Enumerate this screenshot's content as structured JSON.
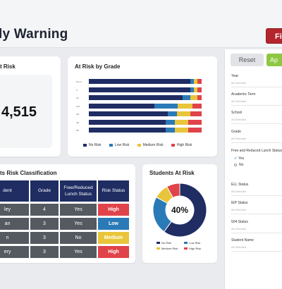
{
  "header": {
    "title": "ly Warning",
    "filter_label": "Fil"
  },
  "kpi": {
    "title": "t Risk",
    "value": "4,515"
  },
  "bar_card": {
    "title": "At Risk by Grade"
  },
  "table_card": {
    "title": "ts Risk Classification"
  },
  "donut_card": {
    "title": "Students At Risk",
    "center": "40%"
  },
  "colors": {
    "no_risk": "#1f2d63",
    "low_risk": "#2a7ab8",
    "medium_risk": "#e8c53a",
    "high_risk": "#e0434a",
    "accent_red": "#b3262c",
    "apply_green": "#8fc742"
  },
  "table": {
    "headers": [
      "dent",
      "Grade",
      "Free/Reduced Lunch Status",
      "Risk Status"
    ],
    "rows": [
      {
        "student": "ley",
        "grade": "4",
        "lunch": "Yes",
        "risk": "High",
        "risk_color": "#e0434a"
      },
      {
        "student": "an",
        "grade": "3",
        "lunch": "Yes",
        "risk": "Low",
        "risk_color": "#2a7ab8"
      },
      {
        "student": "n",
        "grade": "3",
        "lunch": "No",
        "risk": "Medium",
        "risk_color": "#e8c53a"
      },
      {
        "student": "ery",
        "grade": "3",
        "lunch": "Yes",
        "risk": "High",
        "risk_color": "#e0434a"
      }
    ]
  },
  "chart_data": [
    {
      "type": "bar",
      "orientation": "horizontal-stacked-percent",
      "title": "At Risk by Grade",
      "categories": [
        "Pre-K",
        "K",
        "1st",
        "2nd",
        "3rd",
        "4th",
        "5th"
      ],
      "series": [
        {
          "name": "No Risk",
          "color": "#1f2d63",
          "values": [
            90,
            90,
            83,
            58,
            70,
            68,
            68
          ]
        },
        {
          "name": "Low Risk",
          "color": "#2a7ab8",
          "values": [
            3,
            3,
            7,
            21,
            8,
            8,
            8
          ]
        },
        {
          "name": "Medium Risk",
          "color": "#e8c53a",
          "values": [
            3,
            3,
            6,
            13,
            12,
            12,
            12
          ]
        },
        {
          "name": "High Risk",
          "color": "#e0434a",
          "values": [
            4,
            4,
            4,
            8,
            10,
            12,
            12
          ]
        }
      ],
      "legend": "bottom",
      "xlim": [
        0,
        100
      ]
    },
    {
      "type": "pie",
      "title": "Students At Risk",
      "center_label": "40%",
      "slices": [
        {
          "name": "No Risk",
          "value": 60,
          "color": "#1f2d63"
        },
        {
          "name": "Low Risk",
          "value": 23,
          "color": "#2a7ab8"
        },
        {
          "name": "Medium Risk",
          "value": 9,
          "color": "#e8c53a"
        },
        {
          "name": "High Risk",
          "value": 8,
          "color": "#e0434a"
        }
      ],
      "legend": "bottom"
    }
  ],
  "sidebar": {
    "reset_label": "Reset",
    "apply_label": "Ap",
    "filters": [
      {
        "label": "Year",
        "placeholder": "All Selected"
      },
      {
        "label": "Academic Term",
        "placeholder": "All Selected"
      },
      {
        "label": "School",
        "placeholder": "All Selected"
      },
      {
        "label": "Grade",
        "placeholder": "All Selected"
      },
      {
        "label": "Free and Reduced Lunch Status",
        "options": [
          "Yes",
          "No"
        ]
      },
      {
        "label": "ELL Status",
        "placeholder": "All Selected"
      },
      {
        "label": "IEP Status",
        "placeholder": "All Selected"
      },
      {
        "label": "504 Status",
        "placeholder": "All Selected"
      },
      {
        "label": "Student Name",
        "placeholder": "All Selected"
      }
    ]
  }
}
